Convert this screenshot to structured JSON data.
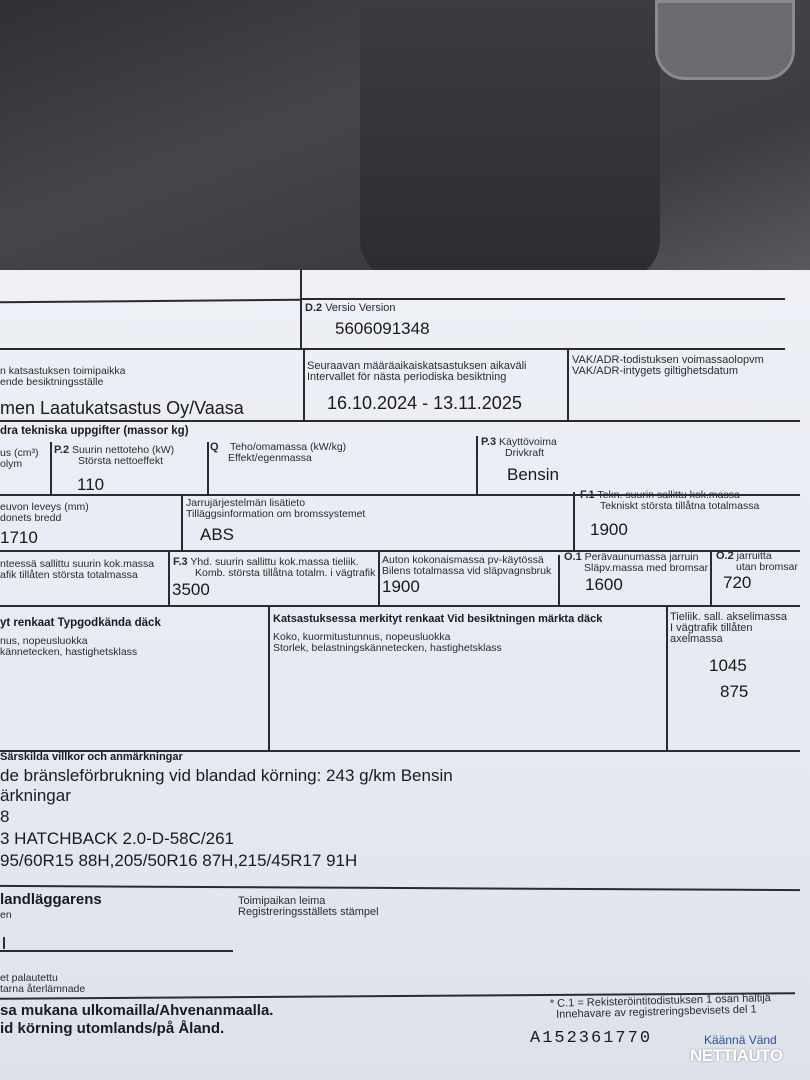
{
  "d2": {
    "code": "D.2",
    "label": "Versio  Version",
    "value": "5606091348"
  },
  "inspection_place": {
    "label1": "n katsastuksen toimipaikka",
    "label2": "ende besiktningsställe",
    "value": "men Laatukatsastus Oy/Vaasa"
  },
  "next_inspection": {
    "label1": "Seuraavan määräaikaiskatsastuksen aikaväli",
    "label2": "Intervallet för nästa periodiska besiktning",
    "value": "16.10.2024 - 13.11.2025"
  },
  "vak_adr": {
    "label1": "VAK/ADR-todistuksen voimassaolopvm",
    "label2": "VAK/ADR-intygets giltighetsdatum"
  },
  "tech_header": "dra tekniska uppgifter (massor kg)",
  "volume": {
    "label1": "us (cm³)",
    "label2": "olym"
  },
  "p2": {
    "code": "P.2",
    "label1": "Suurin nettoteho (kW)",
    "label2": "Största nettoeffekt",
    "value": "110"
  },
  "q": {
    "code": "Q",
    "label1": "Teho/omamassa (kW/kg)",
    "label2": "Effekt/egenmassa"
  },
  "p3": {
    "code": "P.3",
    "label1": "Käyttövoima",
    "label2": "Drivkraft",
    "value": "Bensin"
  },
  "width": {
    "label1": "euvon leveys (mm)",
    "label2": "donets bredd",
    "value": "1710"
  },
  "brake": {
    "label1": "Jarrujärjestelmän lisätieto",
    "label2": "Tilläggsinformation om bromssystemet",
    "value": "ABS"
  },
  "f1": {
    "code": "F.1",
    "label1": "Tekn. suurin sallittu kok.massa",
    "label2": "Tekniskt största tillåtna totalmassa",
    "value": "1900"
  },
  "f2": {
    "label1": "nteessä sallittu suurin kok.massa",
    "label2": "afik tillåten största totalmassa"
  },
  "f3": {
    "code": "F.3",
    "label1": "Yhd. suurin sallittu kok.massa tieliik.",
    "label2": "Komb. största tillåtna totalm. i vägtrafik",
    "value": "3500"
  },
  "trailer_total": {
    "label1": "Auton kokonaismassa pv-käytössä",
    "label2": "Bilens totalmassa vid släpvagnsbruk",
    "value": "1900"
  },
  "o1": {
    "code": "O.1",
    "label1": "Perävaunumassa jarruin",
    "label2": "Släpv.massa med  bromsar",
    "value": "1600"
  },
  "o2": {
    "code": "O.2",
    "label1": "jarruitta",
    "label2": "utan bromsar",
    "value": "720"
  },
  "type_tyres": {
    "header": "yt renkaat  Typgodkända däck",
    "label1": "nus, nopeusluokka",
    "label2": "kännetecken, hastighetsklass"
  },
  "insp_tyres": {
    "header": "Katsastuksessa merkityt renkaat  Vid besiktningen märkta däck",
    "label1": "Koko, kuormitustunnus, nopeusluokka",
    "label2": "Storlek, belastningskännetecken, hastighetsklass"
  },
  "axle": {
    "label1": "Tieliik. sall. akselimassa",
    "label2": "I vägtrafik tillåten",
    "label3": "axelmassa",
    "values": [
      "1045",
      "875"
    ]
  },
  "remarks": {
    "header": "Särskilda villkor och anmärkningar",
    "lines": [
      "de bränsleförbrukning vid blandad körning: 243 g/km Bensin",
      "ärkningar",
      "8",
      "3 HATCHBACK 2.0-D-58C/261",
      "95/60R15 88H,205/50R16 87H,215/45R17 91H"
    ]
  },
  "handler": {
    "header": "landläggarens",
    "sub": "en"
  },
  "stamp": {
    "label1": "Toimipaikan leima",
    "label2": "Registreringsställets stämpel"
  },
  "returned": {
    "label1": "et palautettu",
    "label2": "tarna återlämnade"
  },
  "abroad": {
    "line1": "sa mukana ulkomailla/Ahvenanmaalla.",
    "line2": "id körning utomlands/på Åland."
  },
  "footnote": {
    "line1": "* C.1 = Rekisteröintitodistuksen 1 osan haltija",
    "line2": "Innehavare av registreringsbevisets del 1"
  },
  "serial": "A152361770",
  "turn": "Käännä Vänd",
  "watermark": "NETTIAUTO",
  "colors": {
    "paper": "#e9ecf3",
    "ink": "#1a1b1f",
    "turn_link": "#2a4fa0"
  }
}
